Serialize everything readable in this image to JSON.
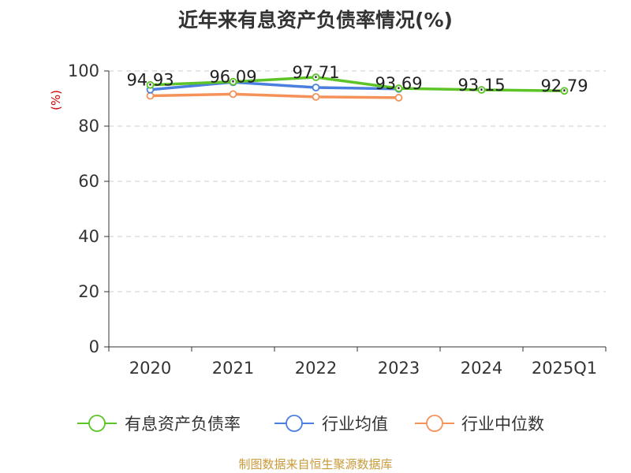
{
  "title": "近年来有息资产负债率情况(%)",
  "footer": "制图数据来自恒生聚源数据库",
  "colors": {
    "有息资产负债率": "#5cc427",
    "行业均值": "#4a7fe0",
    "行业中位数": "#f4925a",
    "grid": "#cccccc",
    "axis": "#333333"
  },
  "chart_data": {
    "type": "line",
    "ylabel": "(%)",
    "ylim": [
      0,
      100
    ],
    "yticks": [
      0,
      20,
      40,
      60,
      80,
      100
    ],
    "grid": true,
    "legend_position": "bottom",
    "categories": [
      "2020",
      "2021",
      "2022",
      "2023",
      "2024",
      "2025Q1"
    ],
    "series": [
      {
        "name": "有息资产负债率",
        "values": [
          94.93,
          96.09,
          97.71,
          93.69,
          93.15,
          92.79
        ],
        "labels": [
          "94.93",
          "96.09",
          "97.71",
          "93.69",
          "93.15",
          "92.79"
        ]
      },
      {
        "name": "行业均值",
        "values": [
          93.2,
          95.9,
          94.0,
          93.5,
          null,
          null
        ]
      },
      {
        "name": "行业中位数",
        "values": [
          91.0,
          91.6,
          90.6,
          90.3,
          null,
          null
        ]
      }
    ]
  }
}
